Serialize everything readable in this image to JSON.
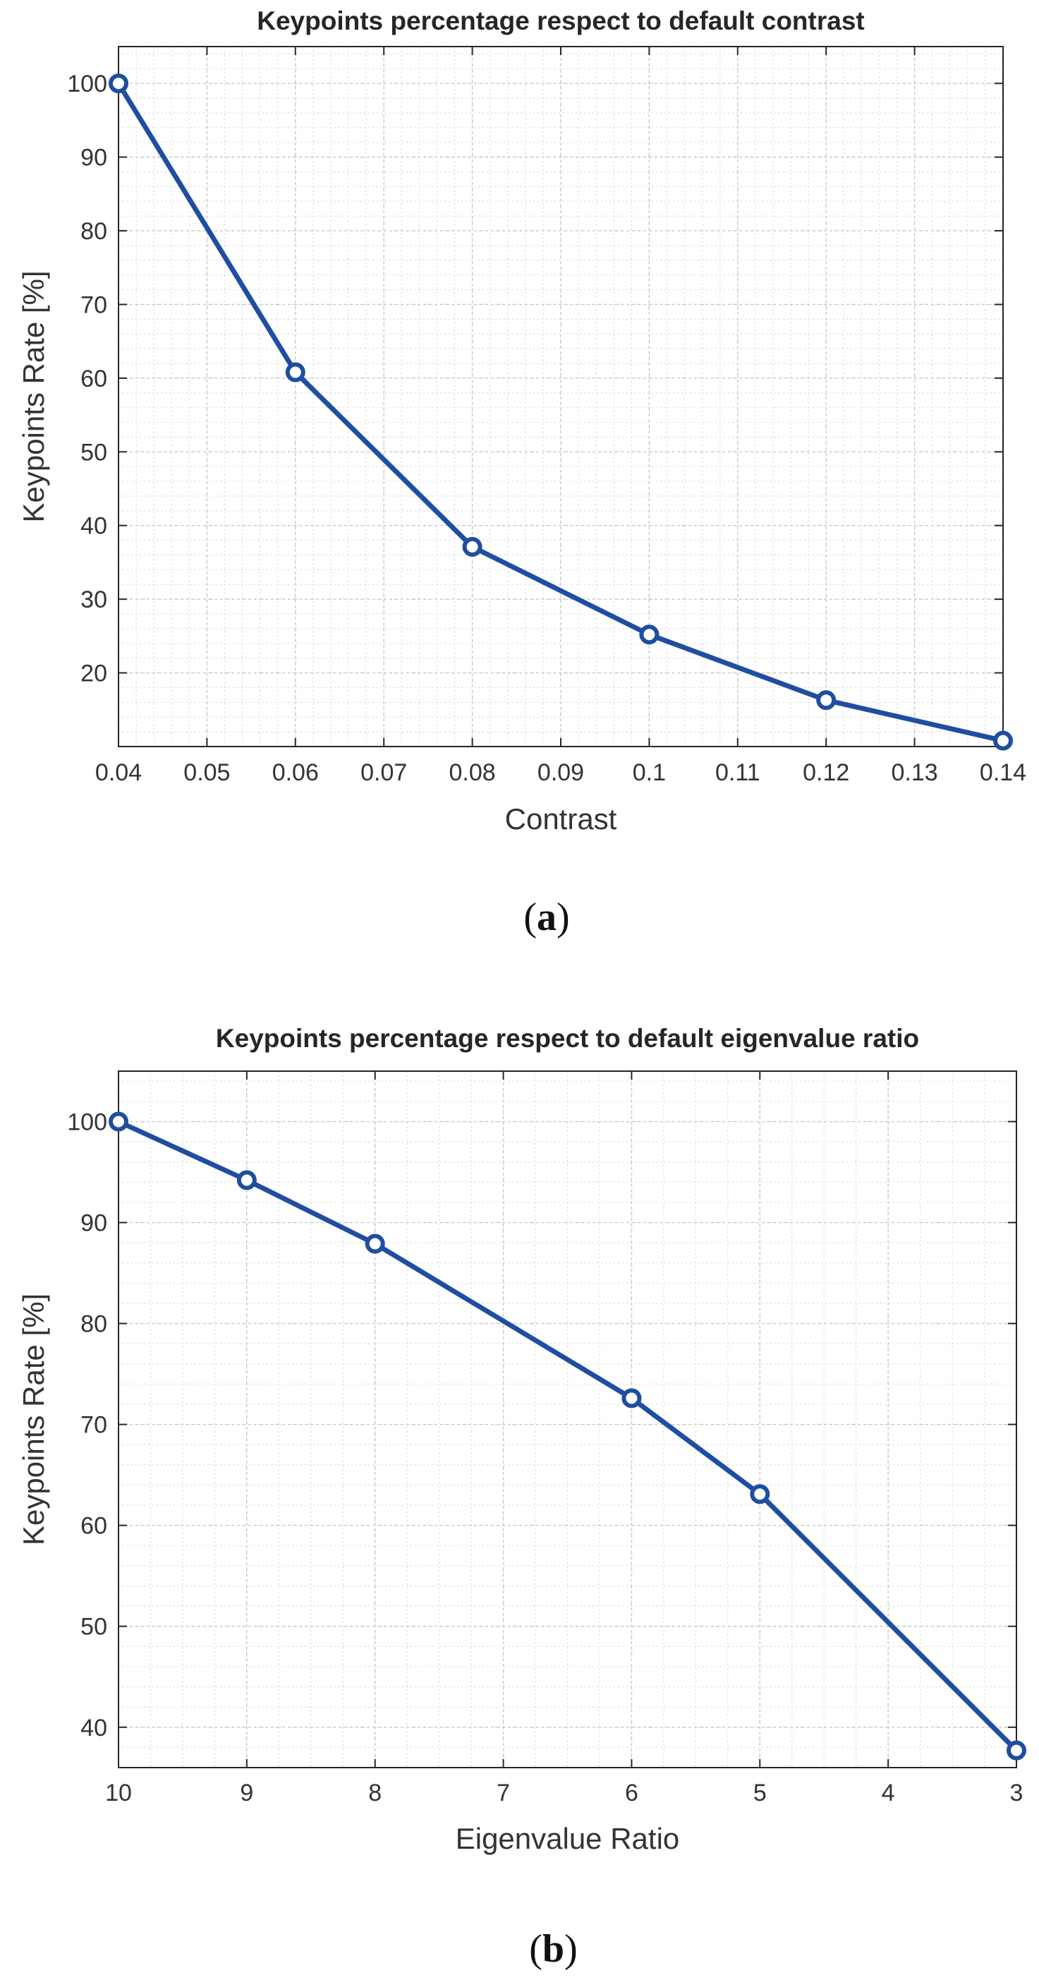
{
  "chart_data": [
    {
      "type": "line",
      "title": "Keypoints percentage respect to default contrast",
      "xlabel": "Contrast",
      "ylabel": "Keypoints Rate [%]",
      "caption": [
        "(",
        "a",
        ")"
      ],
      "x": [
        0.04,
        0.06,
        0.08,
        0.1,
        0.12,
        0.14
      ],
      "series": [
        {
          "values": [
            100,
            60.8,
            37.1,
            25.2,
            16.3,
            10.8
          ],
          "color": "#1f4ea1"
        }
      ],
      "xlim": [
        0.04,
        0.14
      ],
      "ylim": [
        10,
        105
      ],
      "xticks": [
        "0.04",
        "0.05",
        "0.06",
        "0.07",
        "0.08",
        "0.09",
        "0.1",
        "0.11",
        "0.12",
        "0.13",
        "0.14"
      ],
      "yticks": [
        "20",
        "30",
        "40",
        "50",
        "60",
        "70",
        "80",
        "90",
        "100"
      ],
      "x_reversed": false,
      "grid": true,
      "minor_grid": true,
      "marker": "open-circle"
    },
    {
      "type": "line",
      "title": "Keypoints percentage respect to default eigenvalue ratio",
      "xlabel": "Eigenvalue Ratio",
      "ylabel": "Keypoints Rate [%]",
      "caption": [
        "(",
        "b",
        ")"
      ],
      "x": [
        10,
        9,
        8,
        6,
        5,
        3
      ],
      "series": [
        {
          "values": [
            100,
            94.2,
            87.9,
            72.6,
            63.1,
            37.7
          ],
          "color": "#1f4ea1"
        }
      ],
      "xlim": [
        3,
        10
      ],
      "ylim": [
        36,
        105
      ],
      "xticks": [
        "10",
        "9",
        "8",
        "7",
        "6",
        "5",
        "4",
        "3"
      ],
      "yticks": [
        "40",
        "50",
        "60",
        "70",
        "80",
        "90",
        "100"
      ],
      "x_reversed": true,
      "grid": true,
      "minor_grid": true,
      "marker": "open-circle"
    }
  ]
}
